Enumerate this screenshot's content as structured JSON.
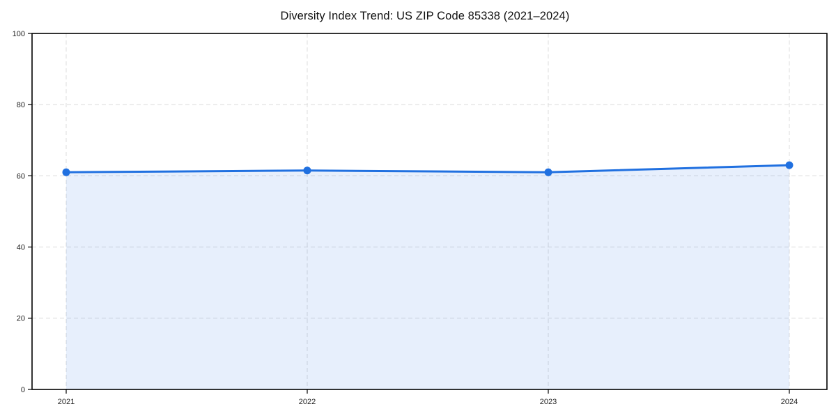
{
  "figure": {
    "background": "#ffffff"
  },
  "chart_data": {
    "type": "line",
    "title": "Diversity Index Trend: US ZIP Code 85338 (2021–2024)",
    "xlabel": "",
    "ylabel": "",
    "categories": [
      "2021",
      "2022",
      "2023",
      "2024"
    ],
    "series": [
      {
        "name": "Diversity Index",
        "values": [
          61.0,
          61.5,
          61.0,
          63.0
        ]
      }
    ],
    "ylim": [
      0,
      100
    ],
    "yticks": [
      0,
      20,
      40,
      60,
      80,
      100
    ],
    "grid": true,
    "grid_style": "dashed",
    "legend_position": "none",
    "area_fill": true,
    "marker": "circle",
    "colors": {
      "line": "#2070e0",
      "marker": "#2070e0",
      "fill": "#2070e0",
      "fill_opacity": 0.11,
      "grid": "#dcdcdc",
      "axis": "#000000",
      "tick_label": "#222222",
      "title": "#111111",
      "background": "#ffffff"
    }
  }
}
